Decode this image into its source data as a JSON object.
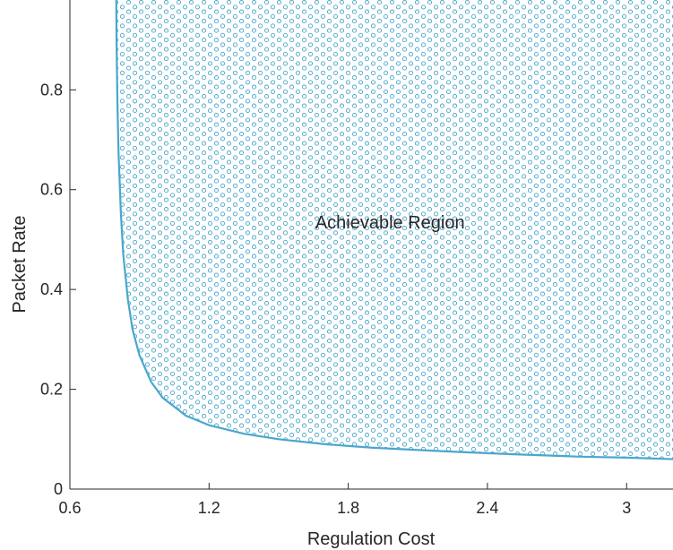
{
  "chart_data": {
    "type": "area",
    "title": "",
    "xlabel": "Regulation Cost",
    "ylabel": "Packet Rate",
    "xlim": [
      0.6,
      3.2
    ],
    "ylim": [
      0,
      0.98
    ],
    "xticks": [
      0.6,
      1.2,
      1.8,
      2.4,
      3.0
    ],
    "xtick_labels": [
      "0.6",
      "1.2",
      "1.8",
      "2.4",
      "3"
    ],
    "yticks": [
      0,
      0.2,
      0.4,
      0.6,
      0.8
    ],
    "ytick_labels": [
      "0",
      "0.2",
      "0.4",
      "0.6",
      "0.8"
    ],
    "grid": false,
    "series": [
      {
        "fill": "dotted",
        "color": "#4aa7cc",
        "x": [
          0.8,
          0.801,
          0.805,
          0.81,
          0.82,
          0.83,
          0.85,
          0.87,
          0.9,
          0.95,
          1.0,
          1.1,
          1.2,
          1.35,
          1.5,
          1.7,
          1.9,
          2.2,
          2.5,
          2.8,
          3.0,
          3.2
        ],
        "y": [
          0.98,
          0.9,
          0.77,
          0.67,
          0.55,
          0.47,
          0.38,
          0.32,
          0.268,
          0.215,
          0.183,
          0.147,
          0.128,
          0.111,
          0.1,
          0.09,
          0.083,
          0.076,
          0.07,
          0.065,
          0.063,
          0.06
        ]
      }
    ],
    "annotations": [
      {
        "text": "Achievable Region",
        "x": 1.98,
        "y": 0.535
      }
    ]
  }
}
